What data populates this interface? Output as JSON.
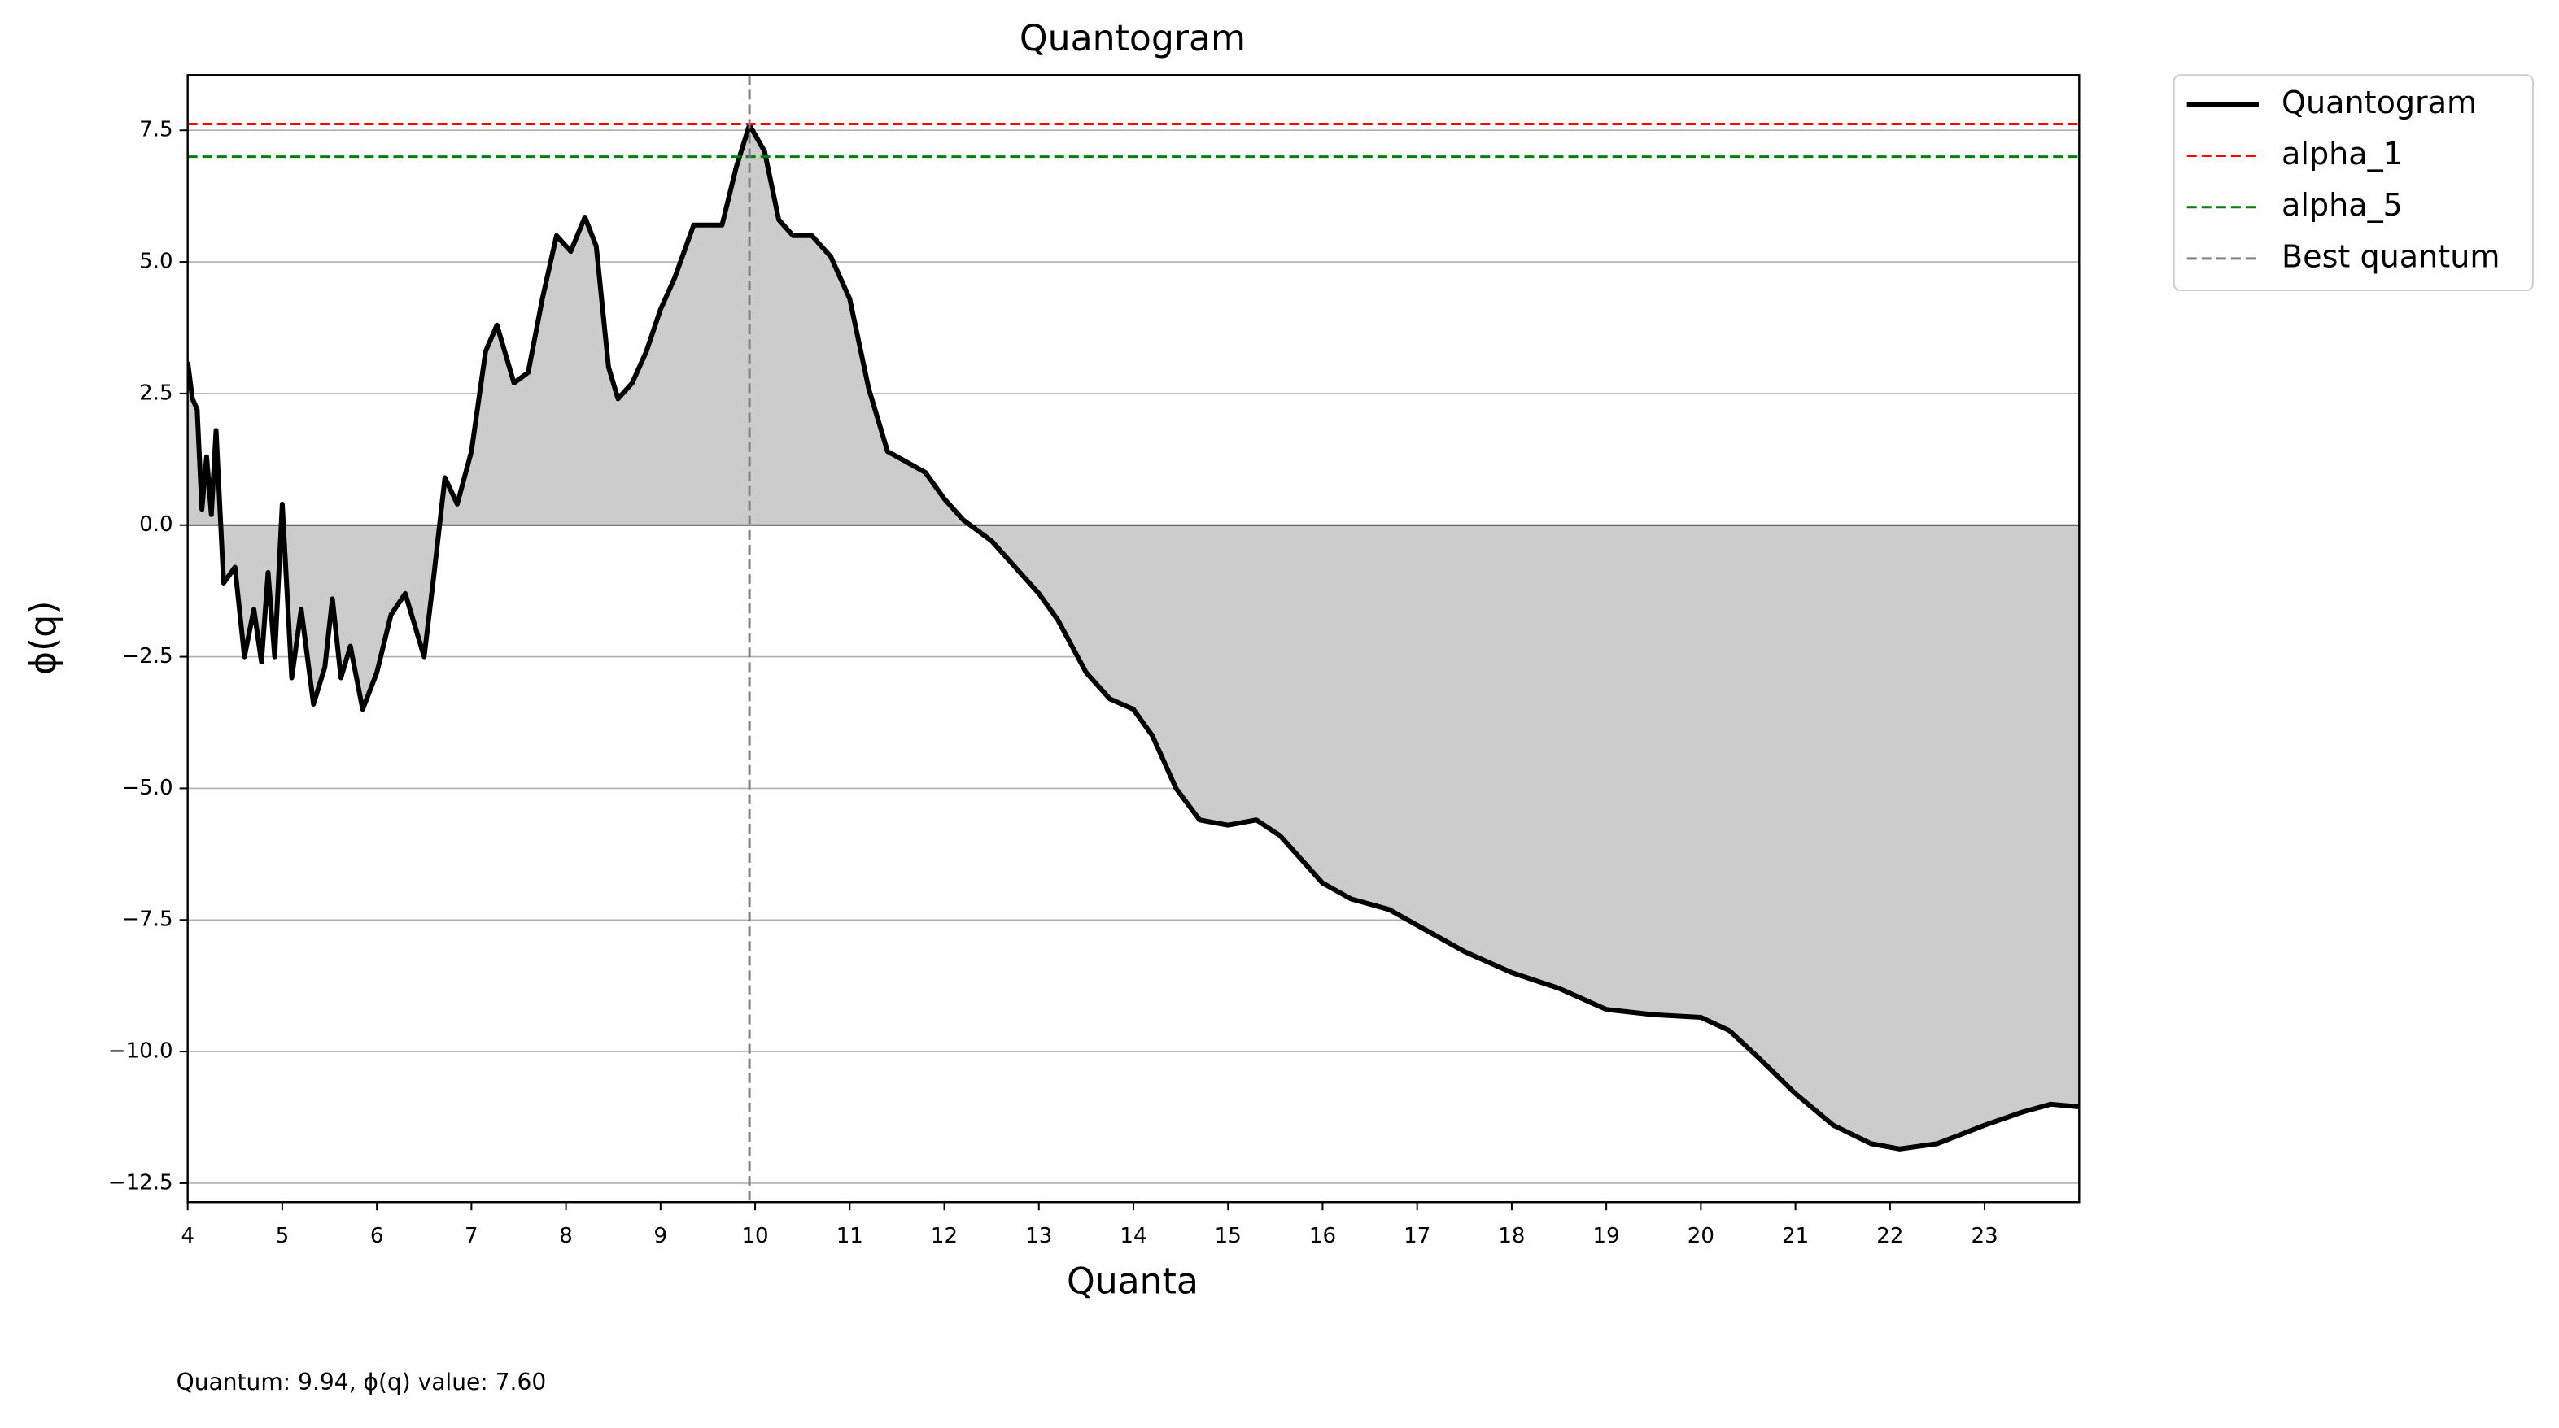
{
  "chart_data": {
    "type": "line",
    "title": "Quantogram",
    "xlabel": "Quanta",
    "ylabel": "ϕ(q)",
    "annotation": "Quantum: 9.94, ϕ(q) value: 7.60",
    "x": [
      4.0,
      4.05,
      4.1,
      4.15,
      4.2,
      4.25,
      4.3,
      4.38,
      4.5,
      4.6,
      4.7,
      4.78,
      4.85,
      4.92,
      5.0,
      5.1,
      5.2,
      5.33,
      5.45,
      5.53,
      5.62,
      5.72,
      5.85,
      6.0,
      6.15,
      6.3,
      6.5,
      6.6,
      6.72,
      6.85,
      7.0,
      7.15,
      7.27,
      7.45,
      7.6,
      7.75,
      7.9,
      8.05,
      8.2,
      8.32,
      8.45,
      8.55,
      8.7,
      8.85,
      9.0,
      9.15,
      9.35,
      9.5,
      9.65,
      9.8,
      9.94,
      10.1,
      10.25,
      10.4,
      10.6,
      10.8,
      11.0,
      11.2,
      11.4,
      11.6,
      11.8,
      12.0,
      12.2,
      12.5,
      12.8,
      13.0,
      13.2,
      13.5,
      13.75,
      14.0,
      14.2,
      14.45,
      14.7,
      15.0,
      15.3,
      15.55,
      15.8,
      16.0,
      16.3,
      16.7,
      17.0,
      17.5,
      18.0,
      18.5,
      19.0,
      19.5,
      20.0,
      20.3,
      20.6,
      21.0,
      21.4,
      21.8,
      22.1,
      22.5,
      23.0,
      23.4,
      23.7,
      24.0
    ],
    "series": [
      {
        "name": "Quantogram",
        "color": "#000000",
        "values": [
          3.1,
          2.4,
          2.2,
          0.3,
          1.3,
          0.2,
          1.8,
          -1.1,
          -0.8,
          -2.5,
          -1.6,
          -2.6,
          -0.9,
          -2.5,
          0.4,
          -2.9,
          -1.6,
          -3.4,
          -2.7,
          -1.4,
          -2.9,
          -2.3,
          -3.5,
          -2.8,
          -1.7,
          -1.3,
          -2.5,
          -1.0,
          0.9,
          0.4,
          1.4,
          3.3,
          3.8,
          2.7,
          2.9,
          4.3,
          5.5,
          5.2,
          5.85,
          5.3,
          3.0,
          2.4,
          2.7,
          3.3,
          4.1,
          4.7,
          5.7,
          5.7,
          5.7,
          6.8,
          7.6,
          7.1,
          5.8,
          5.5,
          5.5,
          5.1,
          4.3,
          2.6,
          1.4,
          1.2,
          1.0,
          0.5,
          0.1,
          -0.3,
          -0.9,
          -1.3,
          -1.8,
          -2.8,
          -3.3,
          -3.5,
          -4.0,
          -5.0,
          -5.6,
          -5.7,
          -5.6,
          -5.9,
          -6.4,
          -6.8,
          -7.1,
          -7.3,
          -7.6,
          -8.1,
          -8.5,
          -8.8,
          -9.2,
          -9.3,
          -9.35,
          -9.6,
          -10.1,
          -10.8,
          -11.4,
          -11.75,
          -11.85,
          -11.75,
          -11.4,
          -11.15,
          -11.0,
          -11.05
        ]
      }
    ],
    "fill_color": "#cccccc",
    "hlines": [
      {
        "name": "alpha_1",
        "color": "#ff0000",
        "value": 7.62
      },
      {
        "name": "alpha_5",
        "color": "#008000",
        "value": 7.0
      }
    ],
    "vlines": [
      {
        "name": "Best quantum",
        "color": "#808080",
        "value": 9.94
      }
    ],
    "xlim": [
      4,
      24
    ],
    "ylim": [
      -12.86,
      8.55
    ],
    "xticks": [
      4,
      5,
      6,
      7,
      8,
      9,
      10,
      11,
      12,
      13,
      14,
      15,
      16,
      17,
      18,
      19,
      20,
      21,
      22,
      23
    ],
    "yticks": [
      7.5,
      {
        "value": 5,
        "label": "5.0"
      },
      2.5,
      {
        "value": 0,
        "label": "0.0"
      },
      {
        "value": -2.5,
        "label": "−2.5"
      },
      {
        "value": -5,
        "label": "−5.0"
      },
      {
        "value": -7.5,
        "label": "−7.5"
      },
      {
        "value": -10,
        "label": "−10.0"
      },
      {
        "value": -12.5,
        "label": "−12.5"
      }
    ],
    "grid": true,
    "legend": "outside-upper-right"
  }
}
